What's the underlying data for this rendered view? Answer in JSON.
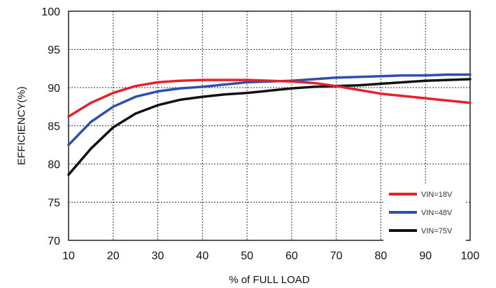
{
  "chart_data": {
    "type": "line",
    "title": "",
    "xlabel": "% of FULL LOAD",
    "ylabel": "EFFICIENCY(%)",
    "xlim": [
      10,
      100
    ],
    "ylim": [
      70,
      100
    ],
    "xticks": [
      "10",
      "20",
      "30",
      "40",
      "50",
      "60",
      "70",
      "80",
      "90",
      "100"
    ],
    "yticks": [
      "70",
      "75",
      "80",
      "85",
      "90",
      "95",
      "100"
    ],
    "grid": true,
    "legend_position": "bottom-right",
    "series": [
      {
        "name": "VIN=18V",
        "color": "#e8202a",
        "x": [
          10,
          15,
          20,
          25,
          30,
          35,
          40,
          45,
          50,
          55,
          60,
          65,
          70,
          75,
          80,
          85,
          90,
          95,
          100
        ],
        "y": [
          86.2,
          88.0,
          89.3,
          90.2,
          90.7,
          90.9,
          91.0,
          91.0,
          91.0,
          90.9,
          90.8,
          90.6,
          90.2,
          89.7,
          89.2,
          88.9,
          88.6,
          88.3,
          88.0
        ]
      },
      {
        "name": "VIN=48V",
        "color": "#2f4fb0",
        "x": [
          10,
          15,
          20,
          25,
          30,
          35,
          40,
          45,
          50,
          55,
          60,
          65,
          70,
          75,
          80,
          85,
          90,
          95,
          100
        ],
        "y": [
          82.5,
          85.5,
          87.5,
          88.8,
          89.5,
          89.9,
          90.1,
          90.4,
          90.7,
          90.8,
          90.9,
          91.1,
          91.3,
          91.4,
          91.5,
          91.6,
          91.6,
          91.7,
          91.7
        ]
      },
      {
        "name": "VIN=75V",
        "color": "#111111",
        "x": [
          10,
          15,
          20,
          25,
          30,
          35,
          40,
          45,
          50,
          55,
          60,
          65,
          70,
          75,
          80,
          85,
          90,
          95,
          100
        ],
        "y": [
          78.6,
          82.0,
          84.8,
          86.6,
          87.7,
          88.4,
          88.8,
          89.1,
          89.3,
          89.6,
          89.9,
          90.1,
          90.2,
          90.3,
          90.5,
          90.7,
          90.9,
          91.0,
          91.1
        ]
      }
    ]
  }
}
